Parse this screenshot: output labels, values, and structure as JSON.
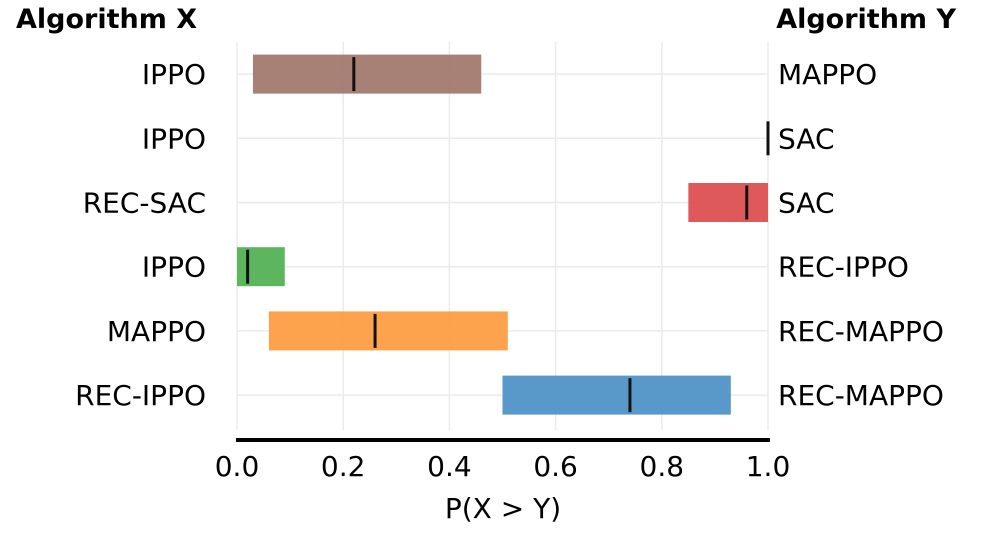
{
  "chart_data": {
    "type": "interval",
    "left_header": "Algorithm X",
    "right_header": "Algorithm Y",
    "xlabel": "P(X > Y)",
    "xlim": [
      0.0,
      1.0
    ],
    "xticks": [
      "0.0",
      "0.2",
      "0.4",
      "0.6",
      "0.8",
      "1.0"
    ],
    "grid": true,
    "rows": [
      {
        "x_algo": "IPPO",
        "y_algo": "MAPPO",
        "low": 0.03,
        "high": 0.46,
        "median": 0.22,
        "color": "#a0756a"
      },
      {
        "x_algo": "IPPO",
        "y_algo": "SAC",
        "low": 1.0,
        "high": 1.0,
        "median": 1.0,
        "color": "#7f7f7f"
      },
      {
        "x_algo": "REC-SAC",
        "y_algo": "SAC",
        "low": 0.85,
        "high": 1.0,
        "median": 0.96,
        "color": "#dc4b4d"
      },
      {
        "x_algo": "IPPO",
        "y_algo": "REC-IPPO",
        "low": 0.0,
        "high": 0.09,
        "median": 0.02,
        "color": "#4fb04f"
      },
      {
        "x_algo": "MAPPO",
        "y_algo": "REC-MAPPO",
        "low": 0.06,
        "high": 0.51,
        "median": 0.26,
        "color": "#fd9a3e"
      },
      {
        "x_algo": "REC-IPPO",
        "y_algo": "REC-MAPPO",
        "low": 0.5,
        "high": 0.93,
        "median": 0.74,
        "color": "#4a90c5"
      }
    ]
  }
}
